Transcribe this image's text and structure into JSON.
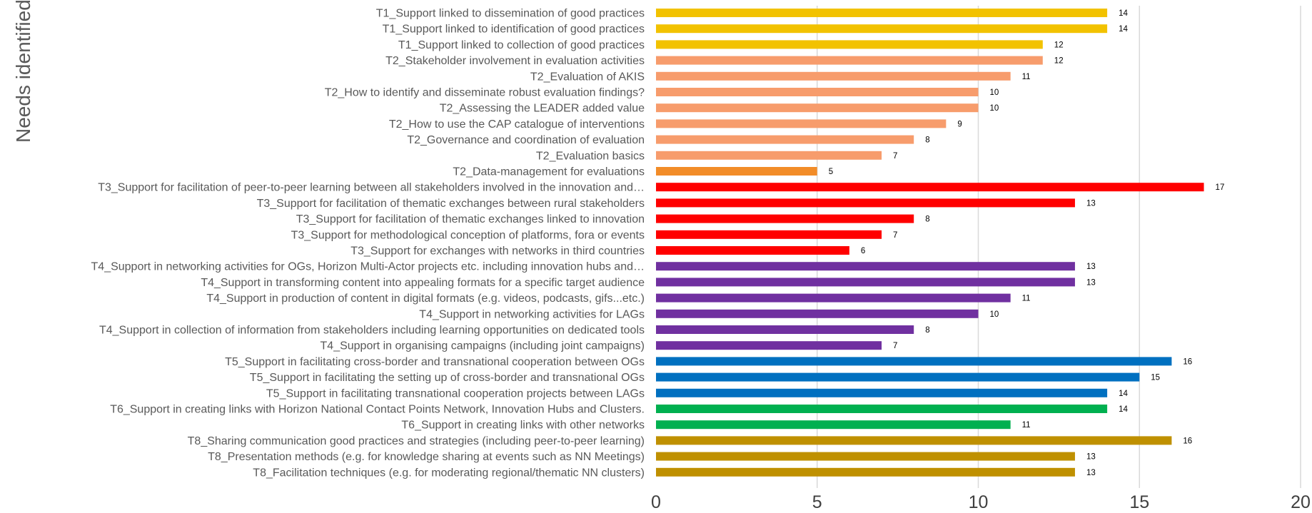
{
  "chart_data": {
    "type": "bar",
    "orientation": "horizontal",
    "ylabel": "Needs identified",
    "xlim": [
      0,
      20
    ],
    "x_ticks": [
      "0",
      "5",
      "10",
      "15",
      "20"
    ],
    "grid": "vertical",
    "data_labels": true,
    "legend": "none",
    "categories": [
      "T1_Support linked to dissemination of good practices",
      "T1_Support linked to identification of good practices",
      "T1_Support linked to collection of good practices",
      "T2_Stakeholder involvement in evaluation activities",
      "T2_Evaluation of AKIS",
      "T2_How to identify and disseminate robust evaluation findings?",
      "T2_Assessing the LEADER added value",
      "T2_How to use the CAP catalogue of interventions",
      "T2_Governance and coordination of evaluation",
      "T2_Evaluation basics",
      "T2_Data-management for evaluations",
      "T3_Support for facilitation of peer-to-peer learning between all stakeholders involved in the innovation and…",
      "T3_Support for facilitation of thematic exchanges between rural stakeholders",
      "T3_Support for facilitation of thematic exchanges linked to innovation",
      "T3_Support for methodological conception of platforms, fora or events",
      "T3_Support for exchanges with networks in third countries",
      "T4_Support in networking activities for OGs, Horizon Multi-Actor projects etc. including innovation hubs and…",
      "T4_Support in transforming content into appealing formats for a specific target audience",
      "T4_Support in production of content in digital formats (e.g. videos, podcasts, gifs...etc.)",
      "T4_Support in networking activities for LAGs",
      "T4_Support in collection of information from stakeholders including learning opportunities on dedicated tools",
      "T4_Support in organising campaigns (including joint campaigns)",
      "T5_Support in facilitating cross-border and transnational cooperation between OGs",
      "T5_Support in facilitating the setting up of cross-border and transnational OGs",
      "T5_Support in facilitating transnational cooperation projects between LAGs",
      "T6_Support in creating links with Horizon National Contact Points Network, Innovation Hubs and Clusters.",
      "T6_Support in creating links with other networks",
      "T8_Sharing communication good practices and strategies (including peer-to-peer learning)",
      "T8_Presentation methods (e.g. for knowledge sharing at events such as NN Meetings)",
      "T8_Facilitation techniques (e.g. for moderating regional/thematic NN clusters)"
    ],
    "values": [
      14,
      14,
      12,
      12,
      11,
      10,
      10,
      9,
      8,
      7,
      5,
      17,
      13,
      8,
      7,
      6,
      13,
      13,
      11,
      10,
      8,
      7,
      16,
      15,
      14,
      14,
      11,
      16,
      13,
      13
    ],
    "colors": [
      "#F2C200",
      "#F2C200",
      "#F2C200",
      "#F79C6C",
      "#F79C6C",
      "#F79C6C",
      "#F79C6C",
      "#F79C6C",
      "#F79C6C",
      "#F79C6C",
      "#F28C28",
      "#FF0000",
      "#FF0000",
      "#FF0000",
      "#FF0000",
      "#FF0000",
      "#7030A0",
      "#7030A0",
      "#7030A0",
      "#7030A0",
      "#7030A0",
      "#7030A0",
      "#0070C0",
      "#0070C0",
      "#0070C0",
      "#00B050",
      "#00B050",
      "#BF9000",
      "#BF9000",
      "#BF9000"
    ]
  }
}
